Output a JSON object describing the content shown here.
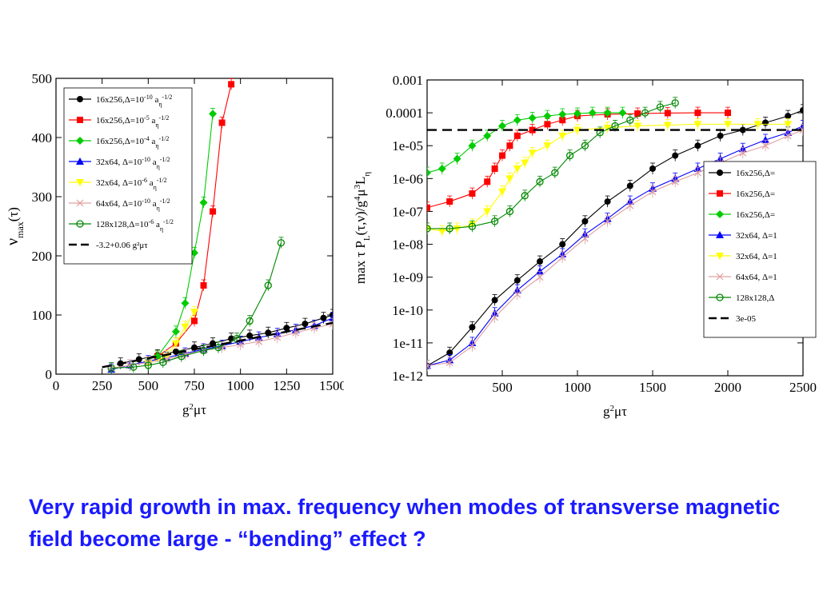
{
  "caption": "Very rapid growth in max. frequency when modes of transverse magnetic field become large - “bending” effect ?",
  "chart_data": [
    {
      "type": "line",
      "xlabel": "g²μτ",
      "ylabel": "ν_max(τ)",
      "xlim": [
        0,
        1500
      ],
      "ylim": [
        0,
        500
      ],
      "xticks": [
        "0",
        "250",
        "500",
        "750",
        "1000",
        "1250",
        "1500"
      ],
      "yticks": [
        "0",
        "100",
        "200",
        "300",
        "400",
        "500"
      ],
      "legend_position": "top-left",
      "series": [
        {
          "name": "16x256,Δ=10^-10 a_η^-1/2",
          "color": "#000000",
          "marker": "circle",
          "x": [
            350,
            450,
            550,
            650,
            750,
            850,
            950,
            1050,
            1150,
            1250,
            1350,
            1450,
            1500
          ],
          "y": [
            18,
            25,
            32,
            38,
            45,
            52,
            60,
            65,
            70,
            78,
            85,
            95,
            100
          ]
        },
        {
          "name": "16x256,Δ=10^-5 a_η^-1/2",
          "color": "#ff0000",
          "marker": "square",
          "x": [
            550,
            650,
            750,
            800,
            850,
            900,
            950
          ],
          "y": [
            30,
            52,
            90,
            150,
            275,
            425,
            490
          ]
        },
        {
          "name": "16x256,Δ=10^-4 a_η^-1/2",
          "color": "#00cc00",
          "marker": "diamond",
          "x": [
            550,
            650,
            700,
            750,
            800,
            850
          ],
          "y": [
            30,
            72,
            120,
            205,
            290,
            440
          ]
        },
        {
          "name": "32x64, Δ=10^-10 a_η^-1/2",
          "color": "#0000ff",
          "marker": "triangle",
          "x": [
            300,
            400,
            500,
            600,
            700,
            800,
            900,
            1000,
            1100,
            1200,
            1300,
            1400,
            1500
          ],
          "y": [
            8,
            15,
            22,
            28,
            35,
            42,
            48,
            55,
            62,
            68,
            75,
            82,
            95
          ]
        },
        {
          "name": "32x64, Δ=10^-6 a_η^-1/2",
          "color": "#ffff00",
          "marker": "tri-down",
          "x": [
            500,
            600,
            650,
            700,
            750
          ],
          "y": [
            18,
            30,
            52,
            80,
            105
          ]
        },
        {
          "name": "64x64, Δ=10^-10 a_η^-1/2",
          "color": "#e0a0a0",
          "marker": "cross",
          "x": [
            300,
            400,
            500,
            600,
            700,
            800,
            900,
            1000,
            1100,
            1200,
            1300,
            1400,
            1500
          ],
          "y": [
            10,
            15,
            20,
            25,
            33,
            40,
            45,
            50,
            55,
            62,
            70,
            78,
            85
          ]
        },
        {
          "name": "128x128,Δ=10^-6 a_η^-1/2",
          "color": "#008800",
          "marker": "open-circle",
          "x": [
            300,
            420,
            500,
            580,
            680,
            800,
            880,
            980,
            1050,
            1150,
            1220
          ],
          "y": [
            10,
            12,
            15,
            20,
            30,
            40,
            45,
            60,
            90,
            150,
            222
          ]
        },
        {
          "name": "-3.2+0.06 g²μτ",
          "color": "#000000",
          "marker": "dashed",
          "x": [
            250,
            1500
          ],
          "y": [
            11.8,
            86.8
          ]
        }
      ]
    },
    {
      "type": "line",
      "xlabel": "g²μτ",
      "ylabel": "max τ P_L(τ,ν)/g⁴μ³L_η",
      "xlim": [
        0,
        2500
      ],
      "ylim": [
        1e-12,
        0.001
      ],
      "yscale": "log",
      "xticks": [
        "500",
        "1000",
        "1500",
        "2000",
        "2500"
      ],
      "yticks": [
        "1e-12",
        "1e-11",
        "1e-10",
        "1e-09",
        "1e-08",
        "1e-07",
        "1e-06",
        "1e-05",
        "0.0001",
        "0.001"
      ],
      "legend_position": "center-right",
      "series": [
        {
          "name": "16x256,Δ=",
          "color": "#000000",
          "marker": "circle",
          "x": [
            0,
            150,
            300,
            450,
            600,
            750,
            900,
            1050,
            1200,
            1350,
            1500,
            1650,
            1800,
            1950,
            2100,
            2250,
            2400,
            2500
          ],
          "y": [
            2e-12,
            5e-12,
            3e-11,
            2e-10,
            8e-10,
            3e-09,
            1e-08,
            5e-08,
            2e-07,
            6e-07,
            2e-06,
            5e-06,
            1e-05,
            2e-05,
            3e-05,
            5e-05,
            8e-05,
            0.00012
          ]
        },
        {
          "name": "16x256,Δ=",
          "color": "#ff0000",
          "marker": "square",
          "x": [
            0,
            150,
            300,
            400,
            450,
            500,
            550,
            600,
            700,
            800,
            900,
            1000,
            1200,
            1400,
            1600,
            1800,
            2000
          ],
          "y": [
            1.3e-07,
            2e-07,
            3.5e-07,
            8e-07,
            2e-06,
            5e-06,
            1e-05,
            2e-05,
            3e-05,
            4.5e-05,
            6e-05,
            8e-05,
            9e-05,
            9.5e-05,
            9.8e-05,
            0.0001,
            0.0001
          ]
        },
        {
          "name": "16x256,Δ=",
          "color": "#00cc00",
          "marker": "diamond",
          "x": [
            0,
            100,
            200,
            300,
            400,
            500,
            600,
            700,
            800,
            900,
            1000,
            1100,
            1200,
            1300
          ],
          "y": [
            1.5e-06,
            2e-06,
            4e-06,
            1e-05,
            2e-05,
            4e-05,
            6e-05,
            7e-05,
            8e-05,
            9e-05,
            9.5e-05,
            0.0001,
            0.0001,
            0.0001
          ]
        },
        {
          "name": "32x64, Δ=1",
          "color": "#0000ff",
          "marker": "triangle",
          "x": [
            0,
            150,
            300,
            450,
            600,
            750,
            900,
            1050,
            1200,
            1350,
            1500,
            1650,
            1800,
            1950,
            2100,
            2250,
            2400,
            2500
          ],
          "y": [
            2e-12,
            3e-12,
            1e-11,
            8e-11,
            4e-10,
            1.5e-09,
            5e-09,
            2e-08,
            6e-08,
            2e-07,
            5e-07,
            1e-06,
            2e-06,
            4e-06,
            8e-06,
            1.5e-05,
            2.5e-05,
            4e-05
          ]
        },
        {
          "name": "32x64, Δ=1",
          "color": "#ffff00",
          "marker": "tri-down",
          "x": [
            0,
            100,
            200,
            300,
            400,
            500,
            550,
            600,
            650,
            700,
            800,
            900,
            1000,
            1200,
            1400,
            1600,
            1800,
            2000,
            2200,
            2400
          ],
          "y": [
            3e-08,
            2.5e-08,
            3e-08,
            4e-08,
            1e-07,
            4e-07,
            1e-06,
            2e-06,
            3e-06,
            6e-06,
            1e-05,
            2e-05,
            3e-05,
            3.5e-05,
            4e-05,
            4.2e-05,
            4.5e-05,
            4.5e-05,
            4.5e-05,
            4.5e-05
          ]
        },
        {
          "name": "64x64, Δ=1",
          "color": "#e0a0a0",
          "marker": "cross",
          "x": [
            0,
            150,
            300,
            450,
            600,
            750,
            900,
            1050,
            1200,
            1350,
            1500,
            1650,
            1800,
            1950,
            2100,
            2250,
            2400,
            2500
          ],
          "y": [
            2e-12,
            2.5e-12,
            8e-12,
            6e-11,
            3e-10,
            1e-09,
            4e-09,
            1.5e-08,
            5e-08,
            1.5e-07,
            4e-07,
            8e-07,
            1.5e-06,
            3e-06,
            6e-06,
            1e-05,
            2e-05,
            3e-05
          ]
        },
        {
          "name": "128x128,Δ",
          "color": "#008800",
          "marker": "open-circle",
          "x": [
            0,
            150,
            300,
            450,
            550,
            650,
            750,
            850,
            950,
            1050,
            1150,
            1250,
            1350,
            1450,
            1550,
            1650
          ],
          "y": [
            3e-08,
            3e-08,
            3.5e-08,
            5e-08,
            1e-07,
            3e-07,
            8e-07,
            1.5e-06,
            5e-06,
            1e-05,
            2.5e-05,
            4e-05,
            6e-05,
            0.0001,
            0.00015,
            0.0002
          ]
        },
        {
          "name": "3e-05",
          "color": "#000000",
          "marker": "dashed",
          "x": [
            0,
            2500
          ],
          "y": [
            3e-05,
            3e-05
          ]
        }
      ]
    }
  ]
}
